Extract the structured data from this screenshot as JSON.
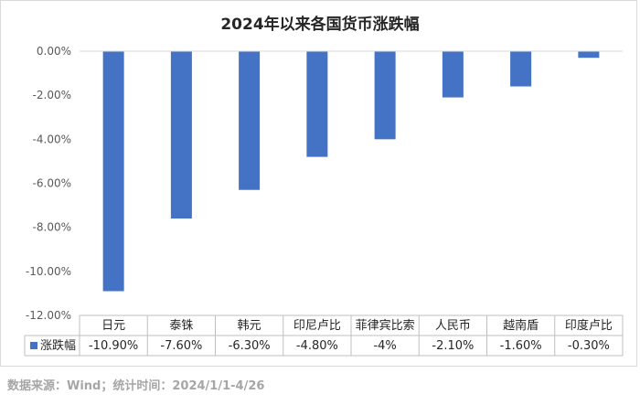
{
  "chart_data": {
    "type": "bar",
    "title": "2024年以来各国货币涨跌幅",
    "categories": [
      "日元",
      "泰铢",
      "韩元",
      "印尼卢比",
      "菲律宾比索",
      "人民币",
      "越南盾",
      "印度卢比"
    ],
    "series": [
      {
        "name": "涨跌幅",
        "values": [
          -10.9,
          -7.6,
          -6.3,
          -4.8,
          -4.0,
          -2.1,
          -1.6,
          -0.3
        ],
        "labels": [
          "-10.90%",
          "-7.60%",
          "-6.30%",
          "-4.80%",
          "-4%",
          "-2.10%",
          "-1.60%",
          "-0.30%"
        ]
      }
    ],
    "ylim": [
      -12,
      0
    ],
    "yticks": [
      0,
      -2,
      -4,
      -6,
      -8,
      -10,
      -12
    ],
    "ytick_labels": [
      "0.00%",
      "-2.00%",
      "-4.00%",
      "-6.00%",
      "-8.00%",
      "-10.00%",
      "-12.00%"
    ],
    "grid": false,
    "legend": "data-table",
    "bar_color": "#4472c4"
  },
  "source_note": "数据来源：Wind；统计时间：2024/1/1-4/26"
}
